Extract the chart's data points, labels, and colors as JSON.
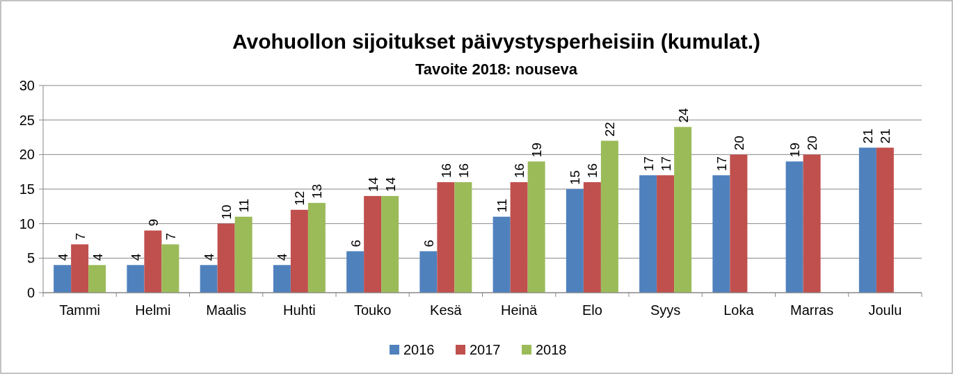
{
  "chart_data": {
    "type": "bar",
    "title": "Avohuollon sijoitukset päivystysperheisiin (kumulat.)",
    "subtitle": "Tavoite 2018: nouseva",
    "categories": [
      "Tammi",
      "Helmi",
      "Maalis",
      "Huhti",
      "Touko",
      "Kesä",
      "Heinä",
      "Elo",
      "Syys",
      "Loka",
      "Marras",
      "Joulu"
    ],
    "series": [
      {
        "name": "2016",
        "color": "#4f81bd",
        "values": [
          4,
          4,
          4,
          4,
          6,
          6,
          11,
          15,
          17,
          17,
          19,
          21
        ]
      },
      {
        "name": "2017",
        "color": "#c0504d",
        "values": [
          7,
          9,
          10,
          12,
          14,
          16,
          16,
          16,
          17,
          20,
          20,
          21
        ]
      },
      {
        "name": "2018",
        "color": "#9bbb59",
        "values": [
          4,
          7,
          11,
          13,
          14,
          16,
          19,
          22,
          24,
          null,
          null,
          null
        ]
      }
    ],
    "ylim": [
      0,
      30
    ],
    "yticks": [
      0,
      5,
      10,
      15,
      20,
      25,
      30
    ],
    "grid": "y",
    "legend": "bottom",
    "data_labels": true
  }
}
